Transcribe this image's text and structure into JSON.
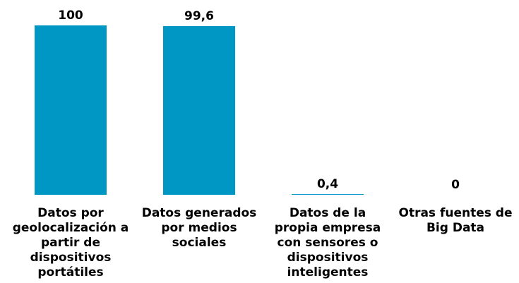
{
  "chart_data": {
    "type": "bar",
    "categories": [
      "Datos por geolocalización a partir de dispositivos portátiles",
      "Datos generados por medios sociales",
      "Datos de la propia empresa con sensores o dispositivos inteligentes",
      "Otras fuentes de Big Data"
    ],
    "category_lines": [
      [
        "Datos por",
        "geolocalización a",
        "partir de",
        "dispositivos",
        "portátiles"
      ],
      [
        "Datos generados",
        "por medios",
        "sociales"
      ],
      [
        "Datos de la",
        "propia empresa",
        "con sensores o",
        "dispositivos",
        "inteligentes"
      ],
      [
        "Otras fuentes de",
        "Big Data"
      ]
    ],
    "values": [
      100,
      99.6,
      0.4,
      0
    ],
    "value_labels": [
      "100",
      "99,6",
      "0,4",
      "0"
    ],
    "ylim": [
      0,
      100
    ],
    "grid": false,
    "bar_color": "#0097c4",
    "title": "",
    "xlabel": "",
    "ylabel": ""
  }
}
